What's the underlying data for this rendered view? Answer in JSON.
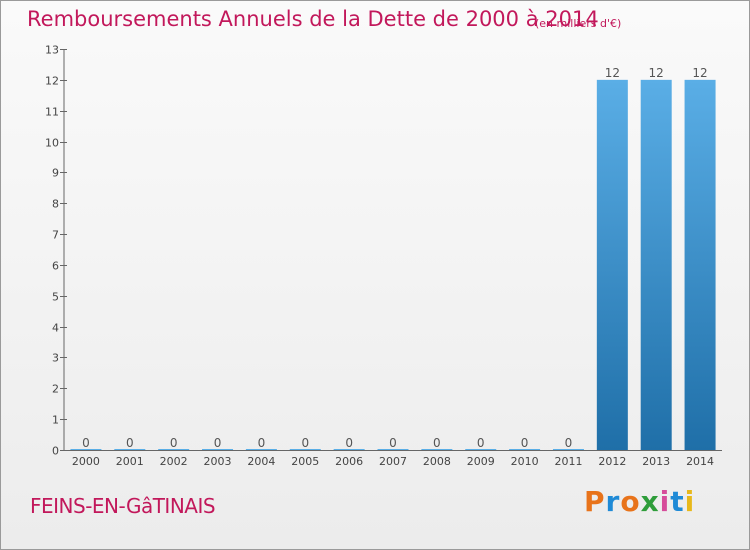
{
  "header": {
    "title": "Remboursements Annuels de la Dette de 2000 à 2014",
    "unit": "(en milliers d'€)"
  },
  "footer": {
    "commune": "FEINS-EN-GâTINAIS",
    "logo_letters": [
      "P",
      "r",
      "o",
      "x",
      "i",
      "t",
      "i"
    ]
  },
  "colors": {
    "title": "#c2185b",
    "bar_top": "#5aaee6",
    "bar_bottom": "#1f6fa8",
    "logo": [
      "#e8731a",
      "#1f8ad6",
      "#e8731a",
      "#2e9d3a",
      "#d64b9a",
      "#1f8ad6",
      "#e8b81a"
    ]
  },
  "chart_data": {
    "type": "bar",
    "categories": [
      "2000",
      "2001",
      "2002",
      "2003",
      "2004",
      "2005",
      "2006",
      "2007",
      "2008",
      "2009",
      "2010",
      "2011",
      "2012",
      "2013",
      "2014"
    ],
    "values": [
      0,
      0,
      0,
      0,
      0,
      0,
      0,
      0,
      0,
      0,
      0,
      0,
      12,
      12,
      12
    ],
    "data_labels": [
      "0",
      "0",
      "0",
      "0",
      "0",
      "0",
      "0",
      "0",
      "0",
      "0",
      "0",
      "0",
      "12",
      "12",
      "12"
    ],
    "ylim": [
      0,
      13
    ],
    "yticks": [
      "0",
      "1",
      "2",
      "3",
      "4",
      "5",
      "6",
      "7",
      "8",
      "9",
      "10",
      "11",
      "12",
      "13"
    ],
    "title": "Remboursements Annuels de la Dette de 2000 à 2014",
    "xlabel": "",
    "ylabel": "",
    "grid": false
  }
}
